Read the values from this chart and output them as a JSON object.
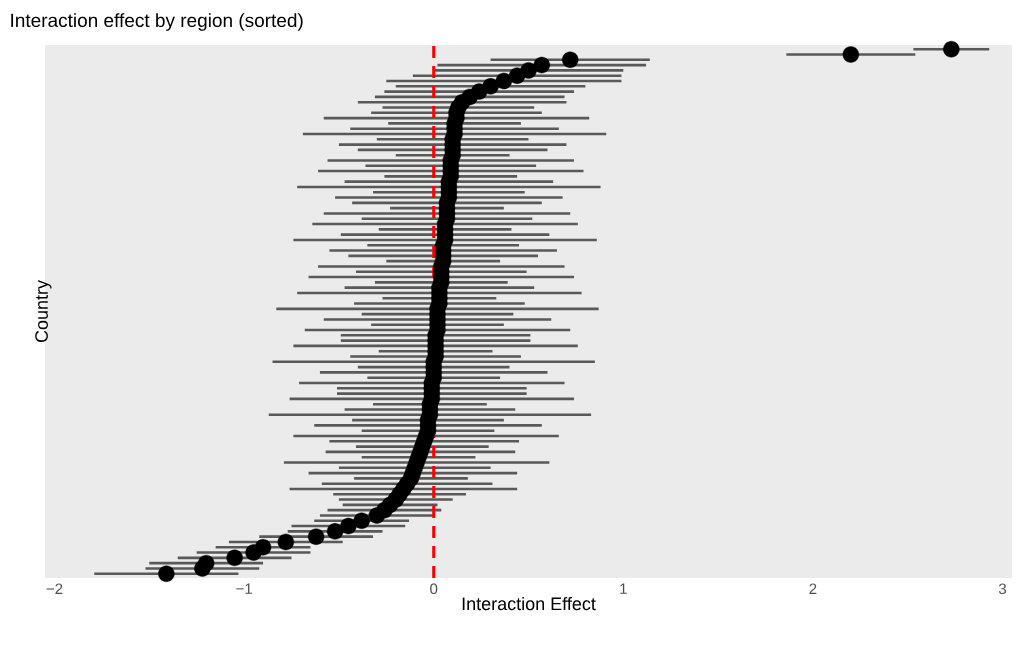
{
  "chart_data": {
    "type": "scatter",
    "orientation": "horizontal",
    "title": "Interaction effect by region (sorted)",
    "xlabel": "Interaction Effect",
    "ylabel": "Country",
    "categories": [
      null,
      null,
      null,
      null,
      null,
      null,
      null,
      null,
      null,
      null,
      null,
      null,
      null,
      null,
      null,
      null,
      null,
      null,
      null,
      null,
      null,
      null,
      null,
      null,
      null,
      null,
      null,
      null,
      null,
      null,
      null,
      null,
      null,
      null,
      null,
      null,
      null,
      null,
      null,
      null,
      null,
      null,
      null,
      null,
      null,
      null,
      null,
      null,
      null,
      null,
      null,
      null,
      null,
      null,
      null,
      null,
      null,
      null,
      null,
      null,
      null,
      null,
      null,
      null,
      null,
      null,
      null,
      null,
      null,
      null,
      null,
      null,
      null,
      null,
      null,
      null,
      null,
      null,
      null,
      null,
      null,
      null,
      null,
      null,
      null,
      null,
      null,
      null,
      null,
      null,
      null,
      null,
      null,
      null,
      null,
      null,
      null,
      null,
      null,
      null
    ],
    "values": [
      2.73,
      2.2,
      0.72,
      0.57,
      0.5,
      0.44,
      0.37,
      0.3,
      0.24,
      0.19,
      0.15,
      0.13,
      0.12,
      0.12,
      0.11,
      0.11,
      0.11,
      0.1,
      0.1,
      0.1,
      0.1,
      0.09,
      0.09,
      0.09,
      0.09,
      0.08,
      0.08,
      0.08,
      0.08,
      0.07,
      0.07,
      0.07,
      0.07,
      0.06,
      0.06,
      0.06,
      0.06,
      0.05,
      0.05,
      0.05,
      0.05,
      0.04,
      0.04,
      0.04,
      0.04,
      0.03,
      0.03,
      0.03,
      0.03,
      0.02,
      0.02,
      0.02,
      0.02,
      0.02,
      0.01,
      0.01,
      0.01,
      0.01,
      0.01,
      0.0,
      0.0,
      0.0,
      0.0,
      -0.01,
      -0.01,
      -0.01,
      -0.01,
      -0.02,
      -0.02,
      -0.02,
      -0.03,
      -0.03,
      -0.03,
      -0.04,
      -0.05,
      -0.06,
      -0.07,
      -0.08,
      -0.09,
      -0.1,
      -0.11,
      -0.12,
      -0.14,
      -0.16,
      -0.18,
      -0.2,
      -0.23,
      -0.26,
      -0.3,
      -0.38,
      -0.45,
      -0.52,
      -0.62,
      -0.78,
      -0.9,
      -0.95,
      -1.05,
      -1.2,
      -1.22,
      -1.41
    ],
    "errors": [
      0.2,
      0.34,
      0.42,
      0.55,
      0.5,
      0.55,
      0.62,
      0.5,
      0.5,
      0.5,
      0.55,
      0.4,
      0.45,
      0.7,
      0.35,
      0.55,
      0.8,
      0.4,
      0.6,
      0.5,
      0.3,
      0.65,
      0.45,
      0.7,
      0.35,
      0.55,
      0.8,
      0.4,
      0.6,
      0.5,
      0.3,
      0.65,
      0.45,
      0.7,
      0.35,
      0.55,
      0.8,
      0.4,
      0.6,
      0.5,
      0.3,
      0.65,
      0.45,
      0.7,
      0.35,
      0.5,
      0.75,
      0.3,
      0.45,
      0.85,
      0.4,
      0.6,
      0.35,
      0.7,
      0.5,
      0.5,
      0.75,
      0.3,
      0.45,
      0.85,
      0.4,
      0.6,
      0.35,
      0.7,
      0.5,
      0.5,
      0.75,
      0.3,
      0.45,
      0.85,
      0.4,
      0.6,
      0.35,
      0.7,
      0.5,
      0.35,
      0.5,
      0.3,
      0.7,
      0.4,
      0.55,
      0.3,
      0.45,
      0.6,
      0.35,
      0.3,
      0.25,
      0.3,
      0.3,
      0.25,
      0.3,
      0.25,
      0.3,
      0.3,
      0.25,
      0.3,
      0.3,
      0.3,
      0.3,
      0.38
    ],
    "color": "#000000",
    "xlim": [
      -2.05,
      3.05
    ],
    "xticks": [
      {
        "value": -2,
        "label": "−2"
      },
      {
        "value": -1,
        "label": "−1"
      },
      0,
      1,
      2,
      3
    ],
    "ref_lines": [
      {
        "axis": "x",
        "value": 0,
        "color": "#ff0000",
        "line_style": "dashed"
      }
    ]
  }
}
